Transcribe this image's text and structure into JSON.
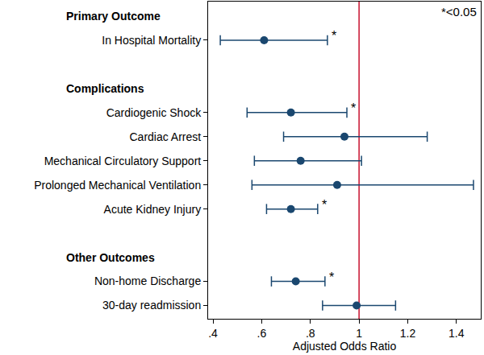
{
  "chart_data": {
    "type": "forest",
    "x_label": "Adjusted Odds Ratio",
    "annotation": "*<0.05",
    "color": "#1a476f",
    "reference_line": {
      "value": 1,
      "color": "#c8102e"
    },
    "xlim": [
      0.38,
      1.5
    ],
    "xticks": [
      {
        "value": 0.4,
        "label": ".4"
      },
      {
        "value": 0.6,
        "label": ".6"
      },
      {
        "value": 0.8,
        "label": ".8"
      },
      1,
      1.2,
      1.4
    ],
    "grid": false,
    "groups": [
      {
        "name": "Primary Outcome",
        "categories": [
          "In Hospital Mortality"
        ],
        "values": [
          0.61
        ],
        "lower": [
          0.43
        ],
        "upper": [
          0.87
        ],
        "significance": [
          "*"
        ]
      },
      {
        "name": "Complications",
        "categories": [
          "Cardiogenic Shock",
          "Cardiac Arrest",
          "Mechanical Circulatory Support",
          "Prolonged Mechanical Ventilation",
          "Acute Kidney Injury"
        ],
        "values": [
          0.72,
          0.94,
          0.76,
          0.91,
          0.72
        ],
        "lower": [
          0.54,
          0.69,
          0.57,
          0.56,
          0.62
        ],
        "upper": [
          0.95,
          1.28,
          1.01,
          1.47,
          0.83
        ],
        "significance": [
          "*",
          null,
          null,
          null,
          "*"
        ]
      },
      {
        "name": "Other Outcomes",
        "categories": [
          "Non-home Discharge",
          "30-day readmission"
        ],
        "values": [
          0.74,
          0.99
        ],
        "lower": [
          0.64,
          0.85
        ],
        "upper": [
          0.86,
          1.15
        ],
        "significance": [
          "*",
          null
        ]
      }
    ]
  }
}
